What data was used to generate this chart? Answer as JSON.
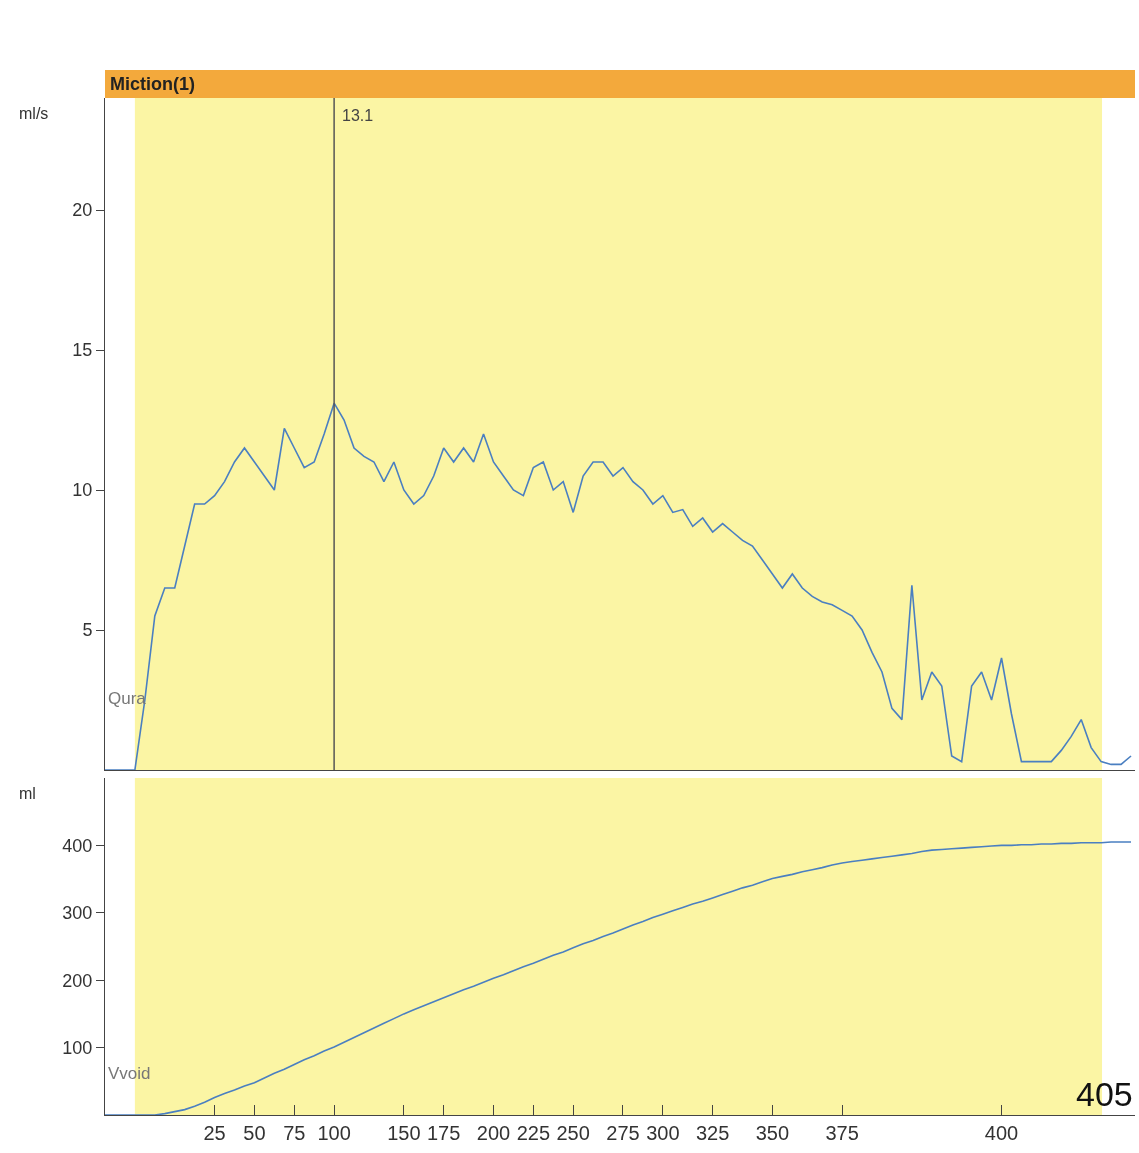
{
  "chart_data": [
    {
      "type": "line",
      "ylabel": "ml/s",
      "tick_labels": "y",
      "legend": false,
      "grid": false,
      "categories": [
        null,
        null,
        null,
        null,
        null,
        null,
        null,
        null,
        null,
        null,
        null,
        "25",
        null,
        null,
        null,
        "50",
        null,
        null,
        null,
        "75",
        null,
        null,
        null,
        "100",
        null,
        null,
        null,
        null,
        null,
        null,
        "150",
        null,
        null,
        null,
        "175",
        null,
        null,
        null,
        null,
        "200",
        null,
        null,
        null,
        "225",
        null,
        null,
        null,
        "250",
        null,
        null,
        null,
        null,
        "275",
        null,
        null,
        null,
        "300",
        null,
        null,
        null,
        null,
        "325",
        null,
        null,
        null,
        null,
        null,
        "350",
        null,
        null,
        null,
        null,
        null,
        null,
        "375",
        null,
        null,
        null,
        null,
        null,
        null,
        null,
        null,
        null,
        null,
        null,
        null,
        null,
        null,
        null,
        "400",
        null,
        null,
        null,
        null,
        null,
        null,
        null,
        null,
        null,
        null,
        null,
        null,
        null
      ],
      "series": [
        {
          "name": "Qura",
          "color": "#4a7fc1",
          "values": [
            0,
            0,
            0,
            0,
            2.5,
            5.5,
            6.5,
            6.5,
            8,
            9.5,
            9.5,
            9.8,
            10.3,
            11,
            11.5,
            11,
            10.5,
            10,
            12.2,
            11.5,
            10.8,
            11,
            12,
            13.1,
            12.5,
            11.5,
            11.2,
            11,
            10.3,
            11,
            10,
            9.5,
            9.8,
            10.5,
            11.5,
            11,
            11.5,
            11,
            12,
            11,
            10.5,
            10,
            9.8,
            10.8,
            11,
            10,
            10.3,
            9.2,
            10.5,
            11,
            11,
            10.5,
            10.8,
            10.3,
            10,
            9.5,
            9.8,
            9.2,
            9.3,
            8.7,
            9,
            8.5,
            8.8,
            8.5,
            8.2,
            8,
            7.5,
            7,
            6.5,
            7,
            6.5,
            6.2,
            6,
            5.9,
            5.7,
            5.5,
            5,
            4.2,
            3.5,
            2.2,
            1.8,
            6.6,
            2.5,
            3.5,
            3,
            0.5,
            0.3,
            3,
            3.5,
            2.5,
            4,
            2,
            0.3,
            0.3,
            0.3,
            0.3,
            0.7,
            1.2,
            1.8,
            0.8,
            0.3,
            0.2,
            0.2,
            0.5
          ]
        }
      ],
      "ylim": [
        0,
        24
      ],
      "yticks": [
        5,
        10,
        15,
        20
      ],
      "title": "Miction(1)",
      "ref_lines": [
        {
          "axis": "x",
          "value": "100",
          "color": "#555555"
        }
      ],
      "annotations": [
        "13.1"
      ]
    },
    {
      "type": "line",
      "ylabel": "ml",
      "legend": false,
      "grid": false,
      "categories": [
        null,
        null,
        null,
        null,
        null,
        null,
        null,
        null,
        null,
        null,
        null,
        "25",
        null,
        null,
        null,
        "50",
        null,
        null,
        null,
        "75",
        null,
        null,
        null,
        "100",
        null,
        null,
        null,
        null,
        null,
        null,
        "150",
        null,
        null,
        null,
        "175",
        null,
        null,
        null,
        null,
        "200",
        null,
        null,
        null,
        "225",
        null,
        null,
        null,
        "250",
        null,
        null,
        null,
        null,
        "275",
        null,
        null,
        null,
        "300",
        null,
        null,
        null,
        null,
        "325",
        null,
        null,
        null,
        null,
        null,
        "350",
        null,
        null,
        null,
        null,
        null,
        null,
        "375",
        null,
        null,
        null,
        null,
        null,
        null,
        null,
        null,
        null,
        null,
        null,
        null,
        null,
        null,
        null,
        "400",
        null,
        null,
        null,
        null,
        null,
        null,
        null,
        null,
        null,
        null,
        null,
        null,
        null
      ],
      "series": [
        {
          "name": "Vvoid",
          "color": "#4a7fc1",
          "values": [
            0,
            0,
            0,
            0,
            0,
            0,
            2,
            5,
            8,
            13,
            19,
            26,
            32,
            37,
            43,
            48,
            55,
            62,
            68,
            75,
            82,
            88,
            95,
            101,
            108,
            115,
            122,
            129,
            136,
            143,
            150,
            156,
            162,
            168,
            174,
            180,
            186,
            191,
            197,
            203,
            208,
            214,
            220,
            225,
            231,
            237,
            242,
            248,
            254,
            259,
            265,
            270,
            276,
            282,
            287,
            293,
            298,
            303,
            308,
            313,
            317,
            322,
            327,
            332,
            337,
            341,
            346,
            351,
            354,
            357,
            361,
            364,
            367,
            371,
            374,
            376,
            378,
            380,
            382,
            384,
            386,
            388,
            391,
            393,
            394,
            395,
            396,
            397,
            398,
            399,
            400,
            400,
            401,
            401,
            402,
            402,
            403,
            403,
            404,
            404,
            404,
            405,
            405,
            405
          ]
        }
      ],
      "ylim": [
        0,
        500
      ],
      "yticks": [
        100,
        200,
        300,
        400
      ],
      "annotations": [
        "405"
      ]
    }
  ]
}
